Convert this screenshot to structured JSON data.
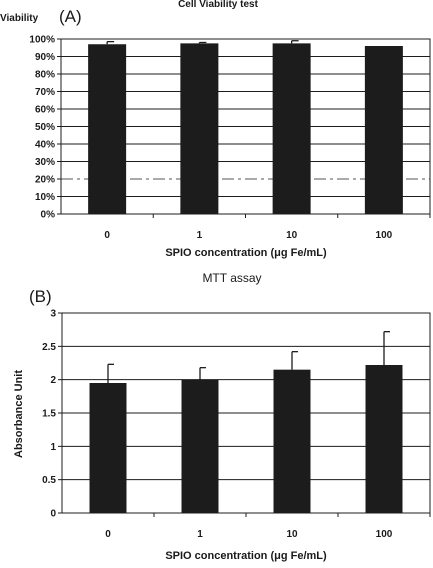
{
  "chart_data": [
    {
      "type": "bar",
      "panel_label": "(A)",
      "title": "Cell Viability test",
      "ylabel": "Viability",
      "xlabel": "SPIO concentration (μg Fe/mL)",
      "categories": [
        "0",
        "1",
        "10",
        "100"
      ],
      "values": [
        97,
        97.5,
        97.5,
        96
      ],
      "errors": [
        1.5,
        0.5,
        1.5,
        0
      ],
      "ylim": [
        0,
        100
      ],
      "yticks": [
        "0%",
        "10%",
        "20%",
        "30%",
        "40%",
        "50%",
        "60%",
        "70%",
        "80%",
        "90%",
        "100%"
      ],
      "grid": true,
      "colors": {
        "bar": "#1c1c1c",
        "grid": "#1c1c1c"
      }
    },
    {
      "type": "bar",
      "panel_label": "(B)",
      "title": "MTT assay",
      "ylabel": "Absorbance Unit",
      "xlabel": "SPIO concentration (μg Fe/mL)",
      "categories": [
        "0",
        "1",
        "10",
        "100"
      ],
      "values": [
        1.95,
        2.0,
        2.15,
        2.22
      ],
      "errors": [
        0.28,
        0.18,
        0.27,
        0.5
      ],
      "ylim": [
        0,
        3
      ],
      "yticks": [
        "0",
        "0.5",
        "1",
        "1.5",
        "2",
        "2.5",
        "3"
      ],
      "grid": true,
      "colors": {
        "bar": "#1c1c1c",
        "grid": "#1c1c1c"
      }
    }
  ]
}
